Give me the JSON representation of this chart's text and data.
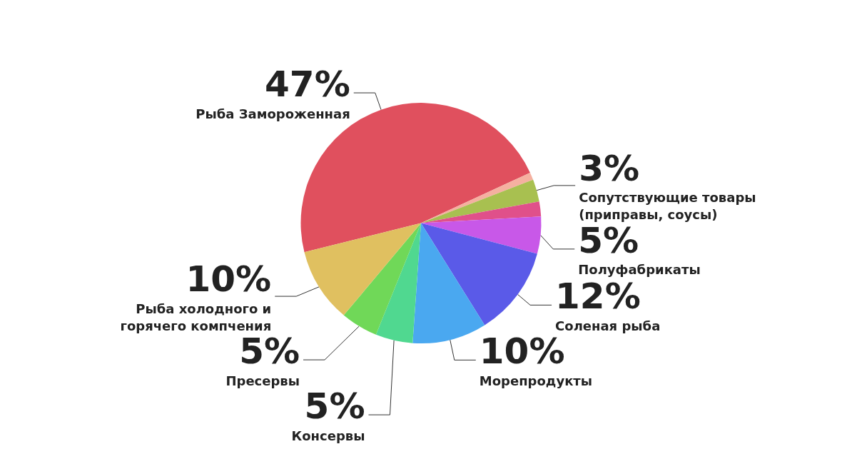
{
  "chart_data": {
    "type": "pie",
    "categories": [
      "Рыба Замороженная",
      null,
      "Сопутствующие товары (приправы, соусы)",
      null,
      "Полуфабрикаты",
      "Соленая рыба",
      "Морепродукты",
      "Консервы",
      "Пресервы",
      "Рыба холодного и горячего компчения"
    ],
    "values": [
      47,
      1,
      3,
      2,
      5,
      12,
      10,
      5,
      5,
      10
    ],
    "value_labels": [
      "47%",
      null,
      "3%",
      null,
      "5%",
      "12%",
      "10%",
      "5%",
      "5%",
      "10%"
    ],
    "colors": [
      "#e0505e",
      "#f5b0a0",
      "#a8c050",
      "#e0508a",
      "#c858e8",
      "#5a5ae8",
      "#4aa8f0",
      "#50d890",
      "#70d858",
      "#e0c060"
    ],
    "legend": false
  }
}
